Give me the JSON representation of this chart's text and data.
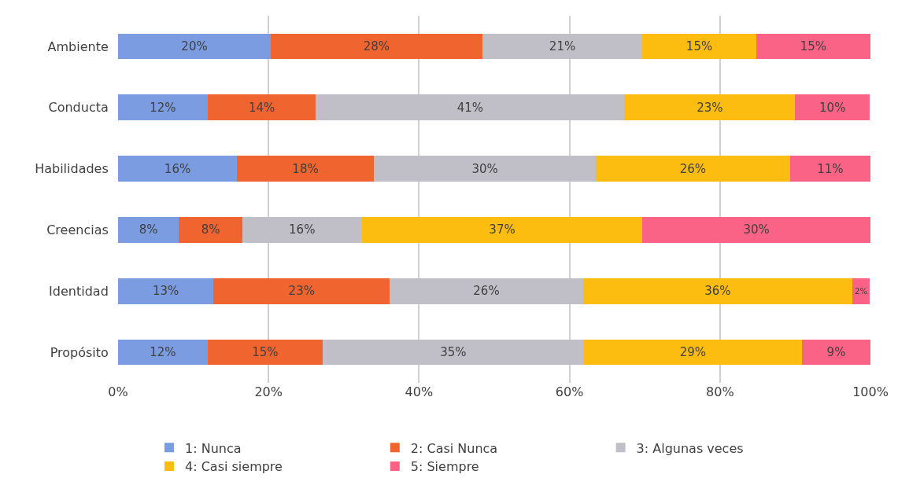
{
  "chart_data": {
    "type": "bar",
    "orientation": "horizontal",
    "stacked": true,
    "categories": [
      "Ambiente",
      "Conducta",
      "Habilidades",
      "Creencias",
      "Identidad",
      "Propósito"
    ],
    "series": [
      {
        "name": "1: Nunca",
        "color": "#7b9ce0",
        "values": [
          20.3,
          11.9,
          15.8,
          8.1,
          12.7,
          11.9
        ],
        "value_labels": [
          "20%",
          "12%",
          "16%",
          "8%",
          "13%",
          "12%"
        ]
      },
      {
        "name": "2: Casi Nunca",
        "color": "#f0642f",
        "values": [
          28.1,
          14.4,
          18.2,
          8.4,
          23.4,
          15.3
        ],
        "value_labels": [
          "28%",
          "14%",
          "18%",
          "8%",
          "23%",
          "15%"
        ]
      },
      {
        "name": "3: Algunas veces",
        "color": "#c0bfc7",
        "values": [
          21.3,
          41.0,
          29.5,
          15.9,
          25.7,
          34.7
        ],
        "value_labels": [
          "21%",
          "41%",
          "30%",
          "16%",
          "26%",
          "35%"
        ]
      },
      {
        "name": "4: Casi siempre",
        "color": "#fdbd10",
        "values": [
          15.1,
          22.7,
          25.8,
          37.3,
          35.8,
          29.0
        ],
        "value_labels": [
          "15%",
          "23%",
          "26%",
          "37%",
          "36%",
          "29%"
        ]
      },
      {
        "name": "5: Siempre",
        "color": "#fa6385",
        "values": [
          15.2,
          9.9,
          10.7,
          30.3,
          2.3,
          9.1
        ],
        "value_labels": [
          "15%",
          "10%",
          "11%",
          "30%",
          "2%",
          "9%"
        ]
      }
    ],
    "xlim": [
      0,
      100
    ],
    "xticks": [
      {
        "value": 0,
        "label": "0%"
      },
      {
        "value": 20,
        "label": "20%"
      },
      {
        "value": 40,
        "label": "40%"
      },
      {
        "value": 60,
        "label": "60%"
      },
      {
        "value": 80,
        "label": "80%"
      },
      {
        "value": 100,
        "label": "100%"
      }
    ],
    "grid": "x",
    "legend": "bottom"
  }
}
